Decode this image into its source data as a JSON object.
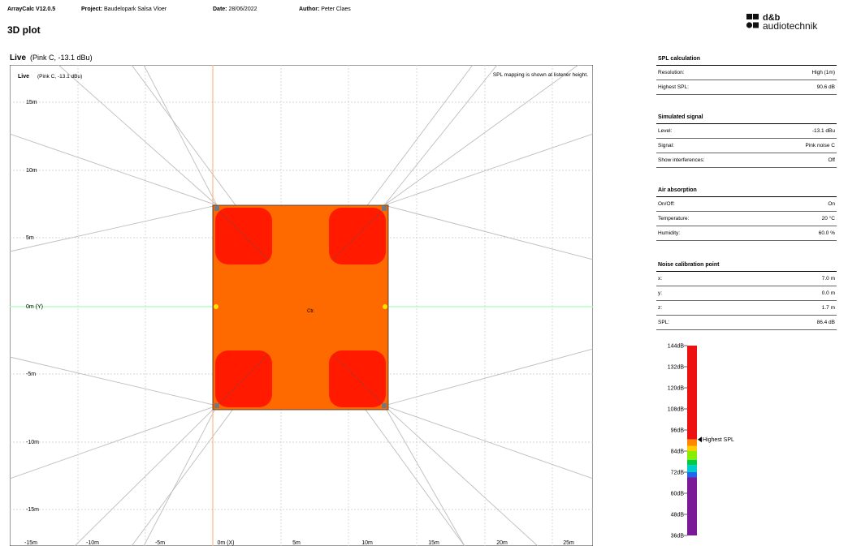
{
  "header": {
    "app": "ArrayCalc V12.0.5",
    "project_label": "Project:",
    "project_value": "Baudelopark Salsa Vloer",
    "date_label": "Date:",
    "date_value": "28/06/2022",
    "author_label": "Author:",
    "author_value": "Peter Claes"
  },
  "page_title": "3D plot",
  "logo": {
    "line1": "d&b",
    "line2": "audiotechnik"
  },
  "plot": {
    "title": "Live",
    "subtitle": "(Pink C, -13.1 dBu)",
    "inner_title": "Live",
    "inner_subtitle": "(Pink C, -13.1 dBu)",
    "note": "SPL mapping is shown at listener height.",
    "center_label": "Ctr.",
    "y_ticks": [
      "15m",
      "10m",
      "5m",
      "0m (Y)",
      "-5m",
      "-10m",
      "-15m"
    ],
    "x_ticks": [
      "-15m",
      "-10m",
      "-5m",
      "0m (X)",
      "5m",
      "10m",
      "15m",
      "20m",
      "25m"
    ],
    "colors": {
      "field": "#ff6a00",
      "hot": "#ff1a00",
      "axis_y": "#a8ffb8",
      "axis_x": "#ffb88a",
      "grid": "#c8c8c8"
    }
  },
  "panels": [
    {
      "title": "SPL calculation",
      "rows": [
        {
          "label": "Resolution:",
          "value": "High (1m)"
        },
        {
          "label": "Highest SPL:",
          "value": "90.6 dB"
        }
      ]
    },
    {
      "title": "Simulated signal",
      "rows": [
        {
          "label": "Level:",
          "value": "-13.1 dBu"
        },
        {
          "label": "Signal:",
          "value": "Pink noise C"
        },
        {
          "label": "Show interferences:",
          "value": "Off"
        }
      ]
    },
    {
      "title": "Air absorption",
      "rows": [
        {
          "label": "On/Off:",
          "value": "On"
        },
        {
          "label": "Temperature:",
          "value": "20 °C"
        },
        {
          "label": "Humidity:",
          "value": "60.0 %"
        }
      ]
    },
    {
      "title": "Noise calibration point",
      "rows": [
        {
          "label": "x:",
          "value": "7.0 m"
        },
        {
          "label": "y:",
          "value": "0.0 m"
        },
        {
          "label": "z:",
          "value": "1.7 m"
        },
        {
          "label": "SPL:",
          "value": "86.4 dB"
        }
      ]
    }
  ],
  "colorbar": {
    "ticks": [
      "144dB",
      "132dB",
      "120dB",
      "108dB",
      "96dB",
      "84dB",
      "72dB",
      "60dB",
      "48dB",
      "36dB"
    ],
    "marker_label": "Highest SPL",
    "highest_spl_db": 90.6
  }
}
